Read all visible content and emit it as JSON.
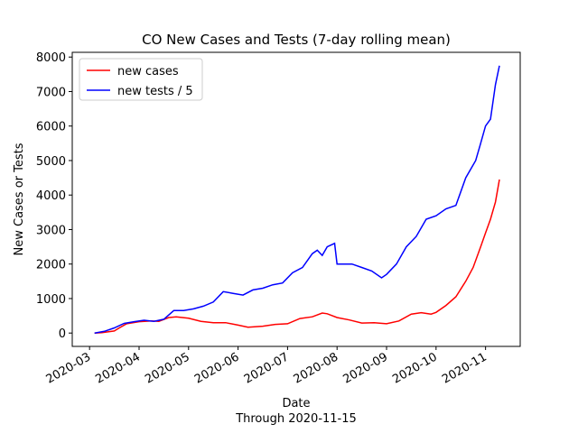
{
  "chart_data": {
    "type": "line",
    "title": "CO New Cases and Tests (7-day rolling mean)",
    "xlabel": "Date",
    "xlabel2": "Through 2020-11-15",
    "ylabel": "New Cases or Tests",
    "legend": "upper left",
    "xlim": [
      2.65,
      11.7
    ],
    "xticks": [
      {
        "value": 3,
        "label": "2020-03"
      },
      {
        "value": 4,
        "label": "2020-04"
      },
      {
        "value": 5,
        "label": "2020-05"
      },
      {
        "value": 6,
        "label": "2020-06"
      },
      {
        "value": 7,
        "label": "2020-07"
      },
      {
        "value": 8,
        "label": "2020-08"
      },
      {
        "value": 9,
        "label": "2020-09"
      },
      {
        "value": 10,
        "label": "2020-10"
      },
      {
        "value": 11,
        "label": "2020-11"
      }
    ],
    "ylim": [
      -387,
      8137
    ],
    "yticks": [
      0,
      1000,
      2000,
      3000,
      4000,
      5000,
      6000,
      7000,
      8000
    ],
    "series": [
      {
        "name": "new cases",
        "color": "#ff0000",
        "x": [
          3.1,
          3.25,
          3.5,
          3.6,
          3.75,
          4.0,
          4.25,
          4.4,
          4.6,
          4.75,
          5.0,
          5.25,
          5.5,
          5.75,
          6.0,
          6.2,
          6.5,
          6.75,
          7.0,
          7.25,
          7.5,
          7.7,
          7.8,
          8.0,
          8.25,
          8.5,
          8.75,
          9.0,
          9.25,
          9.5,
          9.7,
          9.9,
          10.0,
          10.2,
          10.4,
          10.6,
          10.75,
          10.9,
          11.0,
          11.1,
          11.2,
          11.28
        ],
        "values": [
          0,
          10,
          60,
          150,
          270,
          330,
          350,
          340,
          450,
          470,
          430,
          340,
          300,
          300,
          230,
          170,
          200,
          250,
          270,
          420,
          470,
          580,
          560,
          450,
          380,
          290,
          300,
          270,
          350,
          550,
          590,
          550,
          600,
          800,
          1050,
          1500,
          1900,
          2500,
          2900,
          3300,
          3800,
          4450
        ]
      },
      {
        "name": "new tests / 5",
        "color": "#0000ff",
        "x": [
          3.1,
          3.3,
          3.5,
          3.7,
          3.9,
          4.1,
          4.3,
          4.5,
          4.7,
          4.9,
          5.1,
          5.3,
          5.5,
          5.7,
          5.9,
          6.1,
          6.3,
          6.5,
          6.7,
          6.9,
          7.1,
          7.3,
          7.5,
          7.6,
          7.7,
          7.8,
          7.95,
          8.0,
          8.3,
          8.5,
          8.7,
          8.9,
          9.0,
          9.2,
          9.4,
          9.6,
          9.8,
          10.0,
          10.2,
          10.4,
          10.6,
          10.8,
          10.9,
          11.0,
          11.1,
          11.2,
          11.28
        ],
        "values": [
          0,
          50,
          150,
          280,
          330,
          370,
          340,
          400,
          650,
          650,
          700,
          780,
          900,
          1200,
          1150,
          1100,
          1250,
          1300,
          1400,
          1450,
          1750,
          1900,
          2300,
          2400,
          2250,
          2500,
          2600,
          2000,
          2000,
          1900,
          1800,
          1600,
          1700,
          2000,
          2500,
          2800,
          3300,
          3400,
          3600,
          3700,
          4500,
          5000,
          5500,
          6000,
          6200,
          7200,
          7750
        ]
      }
    ]
  }
}
